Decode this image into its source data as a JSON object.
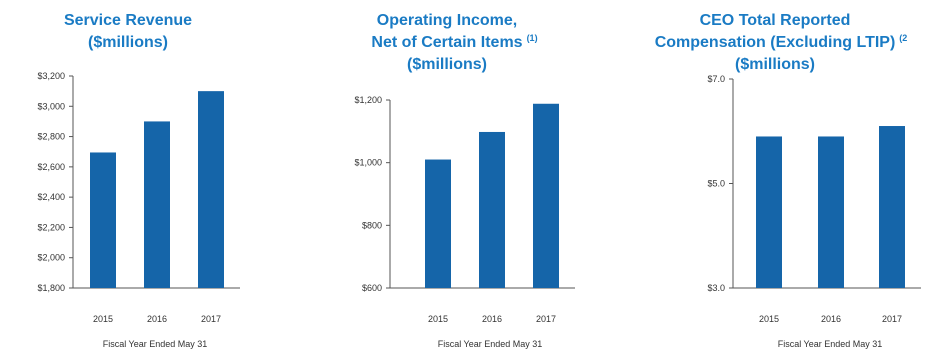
{
  "colors": {
    "bar": "#1565a9",
    "title": "#1a7bc4",
    "axis": "#555555",
    "text": "#333333"
  },
  "chart_data": [
    {
      "type": "bar",
      "title_lines": [
        "Service Revenue",
        "($millions)"
      ],
      "title_sup": "",
      "categories": [
        "2015",
        "2016",
        "2017"
      ],
      "values": [
        2695,
        2900,
        3100
      ],
      "ylim": [
        1800,
        3200
      ],
      "yticks": [
        1800,
        2000,
        2200,
        2400,
        2600,
        2800,
        3000,
        3200
      ],
      "ytick_labels": [
        "$1,800",
        "$2,000",
        "$2,200",
        "$2,400",
        "$2,600",
        "$2,800",
        "$3,000",
        "$3,200"
      ],
      "xlabel": "Fiscal Year Ended May 31",
      "ylabel": ""
    },
    {
      "type": "bar",
      "title_lines": [
        "Operating Income,",
        "Net of Certain Items",
        "($millions)"
      ],
      "title_sup": "(1)",
      "categories": [
        "2015",
        "2016",
        "2017"
      ],
      "values": [
        1010,
        1098,
        1188
      ],
      "ylim": [
        600,
        1200
      ],
      "yticks": [
        600,
        800,
        1000,
        1200
      ],
      "ytick_labels": [
        "$600",
        "$800",
        "$1,000",
        "$1,200"
      ],
      "xlabel": "Fiscal Year Ended May 31",
      "ylabel": ""
    },
    {
      "type": "bar",
      "title_lines": [
        "CEO Total Reported",
        "Compensation (Excluding LTIP)",
        "($millions)"
      ],
      "title_sup": "(2",
      "categories": [
        "2015",
        "2016",
        "2017"
      ],
      "values": [
        5.9,
        5.9,
        6.1
      ],
      "ylim": [
        3.0,
        7.0
      ],
      "yticks": [
        3.0,
        5.0,
        7.0
      ],
      "ytick_labels": [
        "$3.0",
        "$5.0",
        "$7.0"
      ],
      "xlabel": "Fiscal Year Ended May 31",
      "ylabel": ""
    }
  ]
}
